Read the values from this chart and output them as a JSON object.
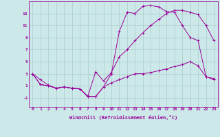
{
  "background_color": "#cce8e8",
  "grid_color": "#aacccc",
  "line_color": "#990099",
  "xlabel": "Windchill (Refroidissement éolien,°C)",
  "xlim": [
    -0.5,
    23.5
  ],
  "ylim": [
    -2.5,
    15
  ],
  "xticks": [
    0,
    1,
    2,
    3,
    4,
    5,
    6,
    7,
    8,
    9,
    10,
    11,
    12,
    13,
    14,
    15,
    16,
    17,
    18,
    19,
    20,
    21,
    22,
    23
  ],
  "yticks": [
    -1,
    1,
    3,
    5,
    7,
    9,
    11,
    13
  ],
  "series1": [
    [
      0,
      3.0
    ],
    [
      1,
      2.0
    ],
    [
      2,
      1.1
    ],
    [
      3,
      0.6
    ],
    [
      4,
      0.8
    ],
    [
      5,
      0.6
    ],
    [
      6,
      0.5
    ],
    [
      7,
      -0.7
    ],
    [
      8,
      -0.8
    ],
    [
      9,
      0.8
    ],
    [
      10,
      1.5
    ],
    [
      11,
      2.0
    ],
    [
      12,
      2.5
    ],
    [
      13,
      3.0
    ],
    [
      14,
      3.0
    ],
    [
      15,
      3.2
    ],
    [
      16,
      3.5
    ],
    [
      17,
      3.8
    ],
    [
      18,
      4.2
    ],
    [
      19,
      4.5
    ],
    [
      20,
      5.0
    ],
    [
      21,
      4.3
    ],
    [
      22,
      2.5
    ],
    [
      23,
      2.0
    ]
  ],
  "series2": [
    [
      0,
      3.0
    ],
    [
      1,
      1.2
    ],
    [
      2,
      1.0
    ],
    [
      3,
      0.6
    ],
    [
      4,
      0.8
    ],
    [
      5,
      0.6
    ],
    [
      6,
      0.5
    ],
    [
      7,
      -0.8
    ],
    [
      8,
      3.3
    ],
    [
      9,
      1.8
    ],
    [
      10,
      3.2
    ],
    [
      11,
      5.8
    ],
    [
      12,
      7.0
    ],
    [
      13,
      8.5
    ],
    [
      14,
      9.8
    ],
    [
      15,
      11.0
    ],
    [
      16,
      12.0
    ],
    [
      17,
      13.0
    ],
    [
      18,
      13.5
    ],
    [
      19,
      13.5
    ],
    [
      20,
      13.2
    ],
    [
      21,
      12.8
    ],
    [
      22,
      11.0
    ],
    [
      23,
      8.5
    ]
  ],
  "series3": [
    [
      0,
      3.0
    ],
    [
      1,
      1.2
    ],
    [
      2,
      1.0
    ],
    [
      3,
      0.6
    ],
    [
      4,
      0.8
    ],
    [
      5,
      0.6
    ],
    [
      6,
      0.5
    ],
    [
      7,
      -0.8
    ],
    [
      8,
      -0.8
    ],
    [
      9,
      0.8
    ],
    [
      10,
      3.0
    ],
    [
      11,
      10.0
    ],
    [
      12,
      13.2
    ],
    [
      13,
      13.0
    ],
    [
      14,
      14.2
    ],
    [
      15,
      14.3
    ],
    [
      16,
      14.1
    ],
    [
      17,
      13.3
    ],
    [
      18,
      13.2
    ],
    [
      19,
      11.0
    ],
    [
      20,
      9.0
    ],
    [
      21,
      8.5
    ],
    [
      22,
      2.5
    ],
    [
      23,
      2.2
    ]
  ]
}
